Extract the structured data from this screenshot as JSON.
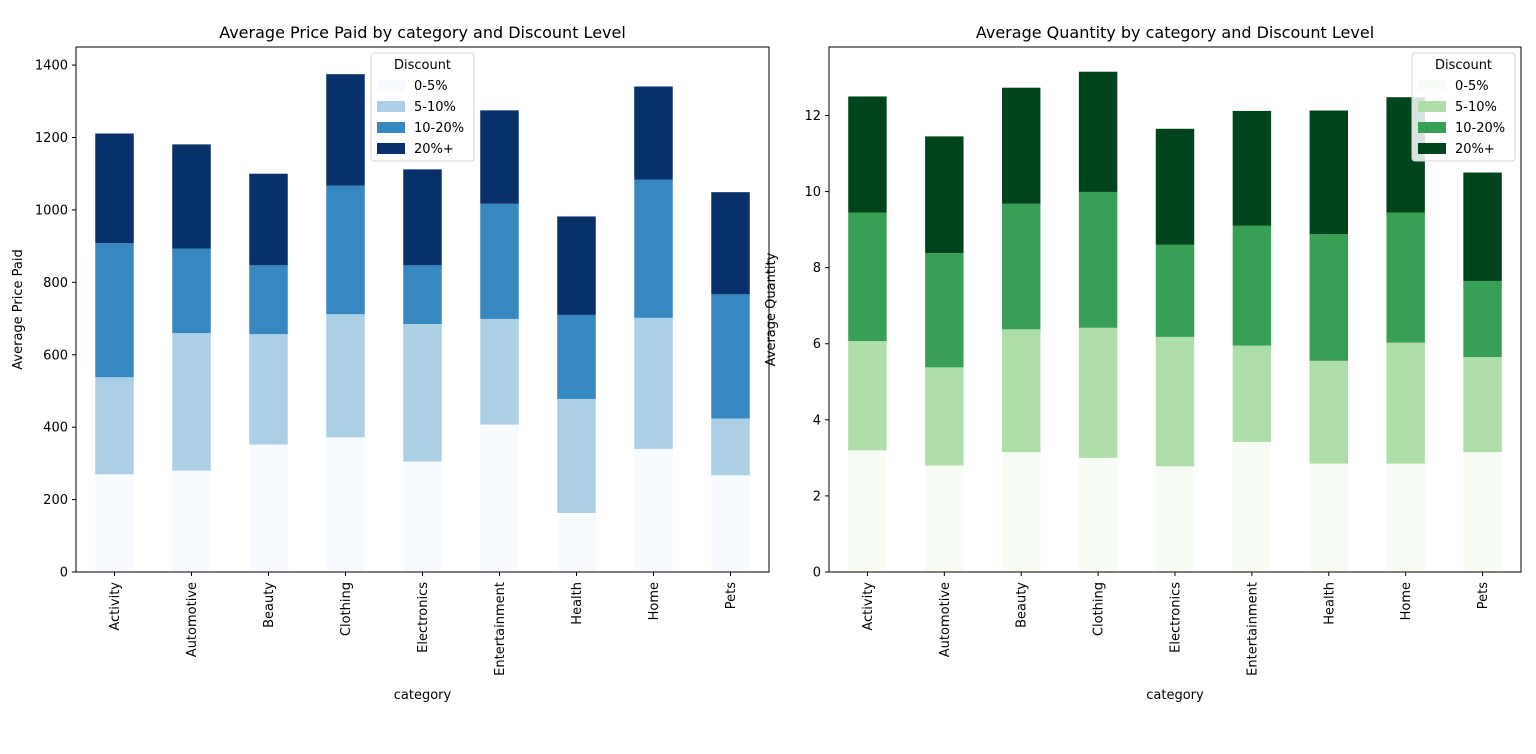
{
  "chart_data": [
    {
      "type": "bar",
      "stacked": true,
      "title": "Average Price Paid by category and Discount Level",
      "xlabel": "category",
      "ylabel": "Average Price Paid",
      "categories": [
        "Activity",
        "Automotive",
        "Beauty",
        "Clothing",
        "Electronics",
        "Entertainment",
        "Health",
        "Home",
        "Pets"
      ],
      "ylim": [
        0,
        1450
      ],
      "yticks": [
        0,
        200,
        400,
        600,
        800,
        1000,
        1200,
        1400
      ],
      "legend": {
        "title": "Discount",
        "placement": "upper-center"
      },
      "series": [
        {
          "name": "0-5%",
          "color": "#f7fbff",
          "values": [
            270,
            280,
            352,
            372,
            305,
            407,
            163,
            340,
            267
          ]
        },
        {
          "name": "5-10%",
          "color": "#abd0e6",
          "values": [
            268,
            380,
            305,
            340,
            380,
            292,
            315,
            362,
            157
          ]
        },
        {
          "name": "10-20%",
          "color": "#3787c0",
          "values": [
            370,
            233,
            190,
            355,
            162,
            318,
            232,
            382,
            343
          ]
        },
        {
          "name": "20%+",
          "color": "#08306b",
          "values": [
            303,
            288,
            253,
            308,
            265,
            258,
            272,
            257,
            282
          ]
        }
      ]
    },
    {
      "type": "bar",
      "stacked": true,
      "title": "Average Quantity by category and Discount Level",
      "xlabel": "category",
      "ylabel": "Average Quantity",
      "categories": [
        "Activity",
        "Automotive",
        "Beauty",
        "Clothing",
        "Electronics",
        "Entertainment",
        "Health",
        "Home",
        "Pets"
      ],
      "ylim": [
        0,
        13.8
      ],
      "yticks": [
        0,
        2,
        4,
        6,
        8,
        10,
        12
      ],
      "legend": {
        "title": "Discount",
        "placement": "upper-right"
      },
      "series": [
        {
          "name": "0-5%",
          "color": "#f7fcf5",
          "values": [
            3.2,
            2.8,
            3.15,
            3.0,
            2.78,
            3.42,
            2.85,
            2.85,
            3.15
          ]
        },
        {
          "name": "5-10%",
          "color": "#aedea7",
          "values": [
            2.87,
            2.58,
            3.23,
            3.42,
            3.4,
            2.53,
            2.7,
            3.18,
            2.5
          ]
        },
        {
          "name": "10-20%",
          "color": "#37a055",
          "values": [
            3.38,
            3.0,
            3.3,
            3.57,
            2.42,
            3.15,
            3.33,
            3.42,
            2.0
          ]
        },
        {
          "name": "20%+",
          "color": "#00441b",
          "values": [
            3.05,
            3.07,
            3.05,
            3.16,
            3.05,
            3.02,
            3.25,
            3.03,
            2.85
          ]
        }
      ]
    }
  ]
}
